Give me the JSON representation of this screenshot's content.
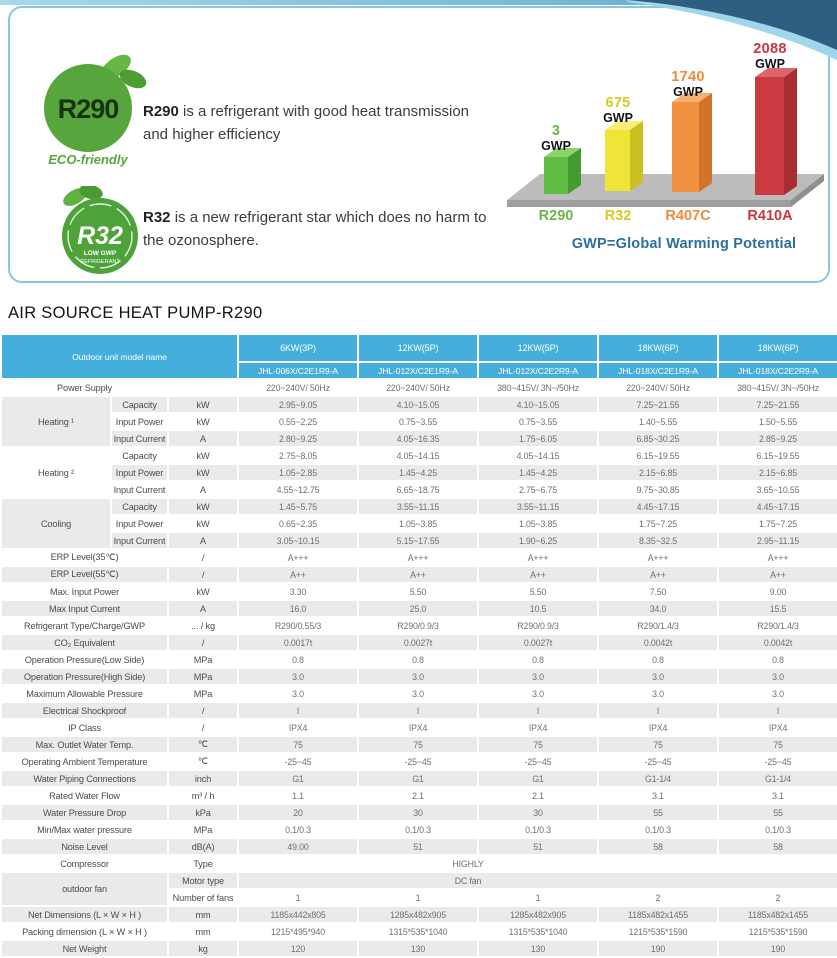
{
  "panel": {
    "r290_badge": {
      "code": "R290",
      "tagline": "ECO-friendly"
    },
    "r32_badge": {
      "code": "R32",
      "tagline1": "LOW GWP",
      "tagline2": "REFRIGERANT"
    },
    "r290_desc": {
      "lead": "R290",
      "rest": " is a refrigerant with good heat transmission and higher efficiency"
    },
    "r32_desc": {
      "lead": "R32",
      "rest": " is a new refrigerant star which does no harm to the ozonosphere."
    }
  },
  "chart_data": {
    "type": "bar",
    "title": "",
    "categories": [
      "R290",
      "R32",
      "R407C",
      "R410A"
    ],
    "values": [
      3,
      675,
      1740,
      2088
    ],
    "value_unit": "GWP",
    "bar_colors": [
      "#62bd47",
      "#f0e438",
      "#f0923f",
      "#ca3a40"
    ],
    "label_colors": [
      "#6cb645",
      "#d9c922",
      "#ee8a3c",
      "#c9383e"
    ],
    "note": "GWP=Global Warming Potential",
    "style": "3d illustrative bars on gray platform, heights not to numeric scale",
    "ylim": [
      0,
      2200
    ],
    "grid": false,
    "legend": false
  },
  "table": {
    "title": "AIR SOURCE HEAT PUMP-R290",
    "header": {
      "model_label": "Outdoor unit model name",
      "columns": [
        {
          "power": "6KW(3P)",
          "model": "JHL-006X/C2E1R9-A"
        },
        {
          "power": "12KW(5P)",
          "model": "JHL-012X/C2E1R9-A"
        },
        {
          "power": "12KW(5P)",
          "model": "JHL-012X/C2E2R9-A"
        },
        {
          "power": "18KW(6P)",
          "model": "JHL-018X/C2E1R9-A"
        },
        {
          "power": "18KW(6P)",
          "model": "JHL-018X/C2E2R9-A"
        }
      ]
    },
    "rows": [
      {
        "label": "Power Supply",
        "lspan": 2,
        "unit": "",
        "values": [
          "220~240V/ 50Hz",
          "220~240V/ 50Hz",
          "380~415V/ 3N~/50Hz",
          "220~240V/ 50Hz",
          "380~415V/ 3N~/50Hz"
        ],
        "shaded": false
      },
      {
        "sec": {
          "label": "Heating ¹",
          "rows": 3,
          "span": 1,
          "shaded": true
        },
        "label": "Capacity",
        "lspan": 1,
        "unit": "kW",
        "values": [
          "2.95~9.05",
          "4.10~15.05",
          "4.10~15.05",
          "7.25~21.55",
          "7.25~21.55"
        ],
        "shaded": true
      },
      {
        "label": "Input Power",
        "lspan": 1,
        "unit": "kW",
        "values": [
          "0.55~2.25",
          "0.75~3.55",
          "0.75~3.55",
          "1.40~5.55",
          "1.50~5.55"
        ],
        "shaded": false
      },
      {
        "label": "Input Current",
        "lspan": 1,
        "unit": "A",
        "values": [
          "2.80~9.25",
          "4.05~16.35",
          "1.75~6.05",
          "6.85~30.25",
          "2.85~9.25"
        ],
        "shaded": true
      },
      {
        "sec": {
          "label": "Heating ²",
          "rows": 3,
          "span": 1,
          "shaded": false
        },
        "label": "Capacity",
        "lspan": 1,
        "unit": "kW",
        "values": [
          "2.75~8.05",
          "4.05~14.15",
          "4.05~14.15",
          "6.15~19.55",
          "6.15~19.55"
        ],
        "shaded": false
      },
      {
        "label": "Input Power",
        "lspan": 1,
        "unit": "kW",
        "values": [
          "1.05~2.85",
          "1.45~4.25",
          "1.45~4.25",
          "2.15~6.85",
          "2.15~6.85"
        ],
        "shaded": true
      },
      {
        "label": "Input Current",
        "lspan": 1,
        "unit": "A",
        "values": [
          "4.55~12.75",
          "6.65~18.75",
          "2.75~6.75",
          "9.75~30.85",
          "3.65~10.55"
        ],
        "shaded": false
      },
      {
        "sec": {
          "label": "Cooling",
          "rows": 3,
          "span": 1,
          "shaded": true
        },
        "label": "Capacity",
        "lspan": 1,
        "unit": "kW",
        "values": [
          "1.45~5.75",
          "3.55~11.15",
          "3.55~11.15",
          "4.45~17.15",
          "4.45~17.15"
        ],
        "shaded": true
      },
      {
        "label": "Input Power",
        "lspan": 1,
        "unit": "kW",
        "values": [
          "0.65~2.35",
          "1.05~3.85",
          "1.05~3.85",
          "1.75~7.25",
          "1.75~7.25"
        ],
        "shaded": false
      },
      {
        "label": "Input Current",
        "lspan": 1,
        "unit": "A",
        "values": [
          "3.05~10.15",
          "5.15~17.55",
          "1.90~6.25",
          "8.35~32.5",
          "2.95~11.15"
        ],
        "shaded": true
      },
      {
        "label": "ERP Level(35℃)",
        "lspan": 2,
        "unit": "/",
        "values": [
          "A+++",
          "A+++",
          "A+++",
          "A+++",
          "A+++"
        ],
        "shaded": false
      },
      {
        "label": "ERP Level(55℃)",
        "lspan": 2,
        "unit": "/",
        "values": [
          "A++",
          "A++",
          "A++",
          "A++",
          "A++"
        ],
        "shaded": true
      },
      {
        "label": "Max. Input Power",
        "lspan": 2,
        "unit": "kW",
        "values": [
          "3.30",
          "5.50",
          "5.50",
          "7.50",
          "9.00"
        ],
        "shaded": false
      },
      {
        "label": "Max Input Current",
        "lspan": 2,
        "unit": "A",
        "values": [
          "16.0",
          "25.0",
          "10.5",
          "34.0",
          "15.5"
        ],
        "shaded": true
      },
      {
        "label": "Refrigerant Type/Charge/GWP",
        "lspan": 2,
        "unit": "... / kg",
        "values": [
          "R290/0.55/3",
          "R290/0.9/3",
          "R290/0.9/3",
          "R290/1.4/3",
          "R290/1.4/3"
        ],
        "shaded": false
      },
      {
        "label": "CO₂ Equivalent",
        "lspan": 2,
        "unit": "/",
        "values": [
          "0.0017t",
          "0.0027t",
          "0.0027t",
          "0.0042t",
          "0.0042t"
        ],
        "shaded": true
      },
      {
        "label": "Operation Pressure(Low Side)",
        "lspan": 2,
        "unit": "MPa",
        "values": [
          "0.8",
          "0.8",
          "0.8",
          "0.8",
          "0.8"
        ],
        "shaded": false
      },
      {
        "label": "Operation Pressure(High Side)",
        "lspan": 2,
        "unit": "MPa",
        "values": [
          "3.0",
          "3.0",
          "3.0",
          "3.0",
          "3.0"
        ],
        "shaded": true
      },
      {
        "label": "Maximum Allowable Pressure",
        "lspan": 2,
        "unit": "MPa",
        "values": [
          "3.0",
          "3.0",
          "3.0",
          "3.0",
          "3.0"
        ],
        "shaded": false
      },
      {
        "label": "Electrical Shockproof",
        "lspan": 2,
        "unit": "/",
        "values": [
          "I",
          "I",
          "I",
          "I",
          "I"
        ],
        "shaded": true
      },
      {
        "label": "IP Class",
        "lspan": 2,
        "unit": "/",
        "values": [
          "IPX4",
          "IPX4",
          "IPX4",
          "IPX4",
          "IPX4"
        ],
        "shaded": false
      },
      {
        "label": "Max. Outlet Water Temp.",
        "lspan": 2,
        "unit": "℃",
        "values": [
          "75",
          "75",
          "75",
          "75",
          "75"
        ],
        "shaded": true
      },
      {
        "label": "Operating Ambient Temperature",
        "lspan": 2,
        "unit": "℃",
        "values": [
          "-25~45",
          "-25~45",
          "-25~45",
          "-25~45",
          "-25~45"
        ],
        "shaded": false
      },
      {
        "label": "Water Piping Connections",
        "lspan": 2,
        "unit": "inch",
        "values": [
          "G1",
          "G1",
          "G1",
          "G1-1/4",
          "G1-1/4"
        ],
        "shaded": true
      },
      {
        "label": "Rated Water Flow",
        "lspan": 2,
        "unit": "m³ / h",
        "values": [
          "1.1",
          "2.1",
          "2.1",
          "3.1",
          "3.1"
        ],
        "shaded": false
      },
      {
        "label": "Water Pressure Drop",
        "lspan": 2,
        "unit": "kPa",
        "values": [
          "20",
          "30",
          "30",
          "55",
          "55"
        ],
        "shaded": true
      },
      {
        "label": "Min/Max water pressure",
        "lspan": 2,
        "unit": "MPa",
        "values": [
          "0.1/0.3",
          "0.1/0.3",
          "0.1/0.3",
          "0.1/0.3",
          "0.1/0.3"
        ],
        "shaded": false
      },
      {
        "label": "Noise Level",
        "lspan": 2,
        "unit": "dB(A)",
        "values": [
          "49.00",
          "51",
          "51",
          "58",
          "58"
        ],
        "shaded": true
      },
      {
        "label": "Compressor",
        "lspan": 2,
        "unit": "Type",
        "merged": "HIGHLY",
        "shaded": false
      },
      {
        "sec": {
          "label": "outdoor fan",
          "rows": 2,
          "span": 2,
          "shaded": true
        },
        "unit": "Motor type",
        "merged": "DC fan",
        "shaded": true
      },
      {
        "unit": "Number of fans",
        "values": [
          "1",
          "1",
          "1",
          "2",
          "2"
        ],
        "shaded": false
      },
      {
        "label": "Net Dimensions (L × W × H )",
        "lspan": 2,
        "unit": "mm",
        "values": [
          "1185x442x805",
          "1285x482x905",
          "1285x482x905",
          "1185x482x1455",
          "1185x482x1455"
        ],
        "shaded": true
      },
      {
        "label": "Packing dimension (L × W × H )",
        "lspan": 2,
        "unit": "mm",
        "values": [
          "1215*495*940",
          "1315*535*1040",
          "1315*535*1040",
          "1215*535*1590",
          "1215*535*1590"
        ],
        "shaded": false
      },
      {
        "label": "Net Weight",
        "lspan": 2,
        "unit": "kg",
        "values": [
          "120",
          "130",
          "130",
          "190",
          "190"
        ],
        "shaded": true
      }
    ]
  }
}
